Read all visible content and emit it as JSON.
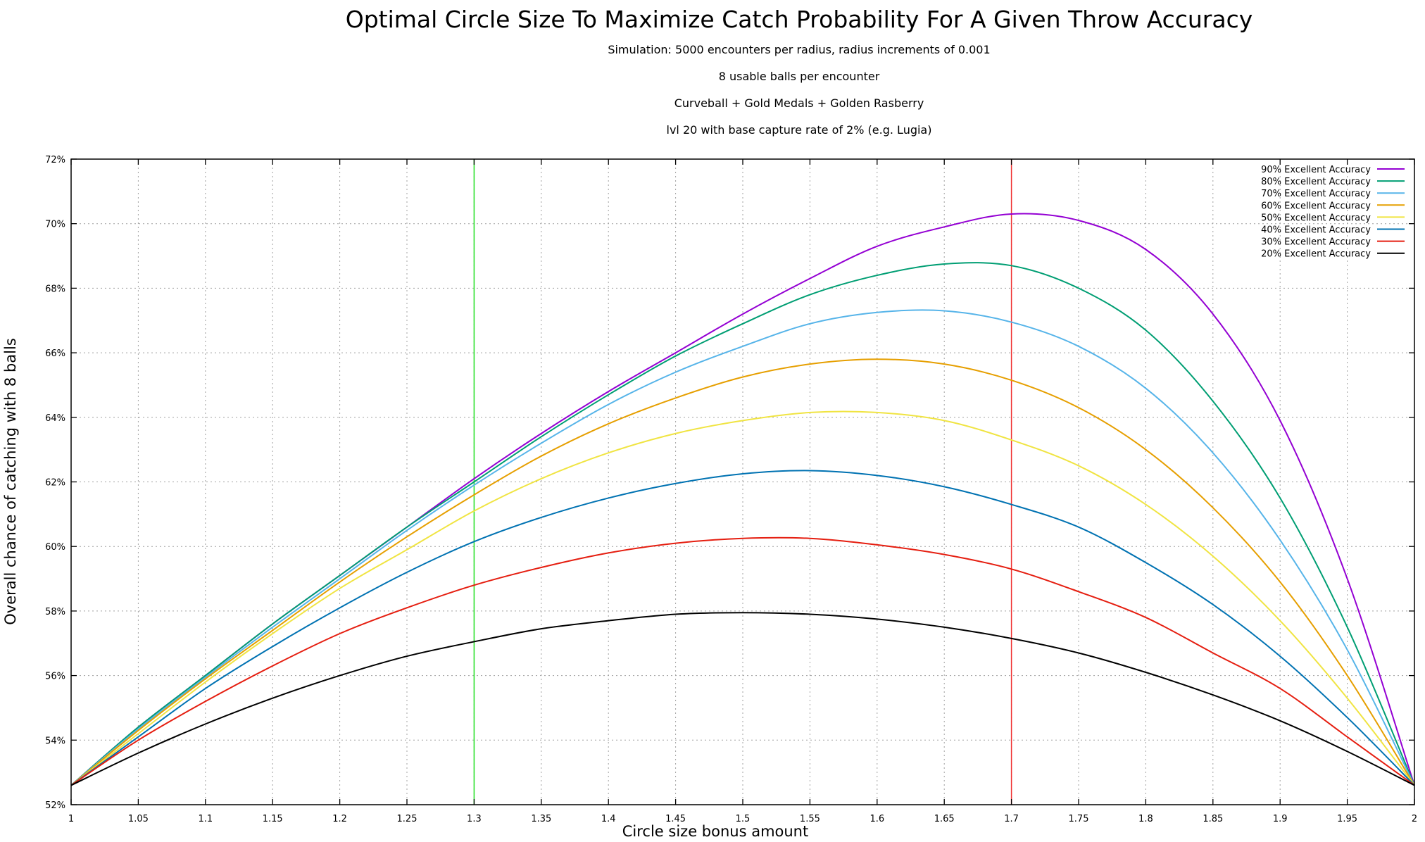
{
  "chart_data": {
    "type": "line",
    "title": "Optimal Circle Size To Maximize Catch Probability For A Given Throw Accuracy",
    "subtitles": [
      "Simulation: 5000 encounters per radius, radius increments of 0.001",
      "8 usable balls per encounter",
      "Curveball + Gold Medals + Golden Rasberry",
      "lvl 20 with base capture rate of 2% (e.g. Lugia)"
    ],
    "xlabel": "Circle size bonus amount",
    "ylabel": "Overall chance of catching with 8 balls",
    "xlim": [
      1,
      2
    ],
    "ylim": [
      52,
      72
    ],
    "grid": true,
    "legend_position": "top-right",
    "x_ticks": [
      "1",
      "1.05",
      "1.1",
      "1.15",
      "1.2",
      "1.25",
      "1.3",
      "1.35",
      "1.4",
      "1.45",
      "1.5",
      "1.55",
      "1.6",
      "1.65",
      "1.7",
      "1.75",
      "1.8",
      "1.85",
      "1.9",
      "1.95",
      "2"
    ],
    "y_ticks": [
      "52%",
      "54%",
      "56%",
      "58%",
      "60%",
      "62%",
      "64%",
      "66%",
      "68%",
      "70%",
      "72%"
    ],
    "vertical_lines": [
      {
        "x": 1.3,
        "color": "#22e022"
      },
      {
        "x": 1.7,
        "color": "#f03030"
      }
    ],
    "x": [
      1.0,
      1.05,
      1.1,
      1.15,
      1.2,
      1.25,
      1.3,
      1.35,
      1.4,
      1.45,
      1.5,
      1.55,
      1.6,
      1.65,
      1.7,
      1.75,
      1.8,
      1.85,
      1.9,
      1.95,
      2.0
    ],
    "series": [
      {
        "name": "90% Excellent Accuracy",
        "color": "#9400d3",
        "values": [
          52.6,
          54.4,
          56.0,
          57.6,
          59.1,
          60.6,
          62.1,
          63.5,
          64.8,
          66.0,
          67.2,
          68.3,
          69.3,
          69.9,
          70.3,
          70.1,
          69.2,
          67.2,
          63.9,
          59.0,
          52.6
        ]
      },
      {
        "name": "80% Excellent Accuracy",
        "color": "#009e73",
        "values": [
          52.6,
          54.4,
          56.0,
          57.6,
          59.1,
          60.6,
          62.0,
          63.4,
          64.7,
          65.9,
          66.9,
          67.8,
          68.4,
          68.75,
          68.7,
          68.0,
          66.7,
          64.5,
          61.5,
          57.5,
          52.6
        ]
      },
      {
        "name": "70% Excellent Accuracy",
        "color": "#56b4e9",
        "values": [
          52.6,
          54.35,
          55.95,
          57.5,
          59.0,
          60.5,
          61.9,
          63.2,
          64.4,
          65.4,
          66.2,
          66.9,
          67.25,
          67.3,
          66.95,
          66.2,
          64.9,
          62.9,
          60.2,
          56.8,
          52.6
        ]
      },
      {
        "name": "60% Excellent Accuracy",
        "color": "#e69f00",
        "values": [
          52.6,
          54.3,
          55.9,
          57.4,
          58.9,
          60.3,
          61.6,
          62.8,
          63.8,
          64.6,
          65.25,
          65.65,
          65.8,
          65.65,
          65.15,
          64.3,
          63.0,
          61.2,
          58.9,
          56.0,
          52.6
        ]
      },
      {
        "name": "50% Excellent Accuracy",
        "color": "#f0e442",
        "values": [
          52.6,
          54.2,
          55.8,
          57.3,
          58.7,
          59.9,
          61.1,
          62.1,
          62.9,
          63.5,
          63.9,
          64.15,
          64.15,
          63.9,
          63.3,
          62.5,
          61.3,
          59.7,
          57.7,
          55.3,
          52.6
        ]
      },
      {
        "name": "40% Excellent Accuracy",
        "color": "#0072b2",
        "values": [
          52.6,
          54.1,
          55.6,
          56.9,
          58.1,
          59.2,
          60.15,
          60.9,
          61.5,
          61.95,
          62.25,
          62.35,
          62.2,
          61.85,
          61.3,
          60.6,
          59.5,
          58.2,
          56.6,
          54.7,
          52.6
        ]
      },
      {
        "name": "30% Excellent Accuracy",
        "color": "#e51e10",
        "values": [
          52.6,
          54.0,
          55.2,
          56.3,
          57.3,
          58.1,
          58.8,
          59.35,
          59.8,
          60.1,
          60.25,
          60.25,
          60.05,
          59.75,
          59.3,
          58.6,
          57.8,
          56.7,
          55.6,
          54.1,
          52.6
        ]
      },
      {
        "name": "20% Excellent Accuracy",
        "color": "#000000",
        "values": [
          52.6,
          53.6,
          54.5,
          55.3,
          56.0,
          56.6,
          57.05,
          57.45,
          57.7,
          57.9,
          57.95,
          57.9,
          57.75,
          57.5,
          57.15,
          56.7,
          56.1,
          55.4,
          54.6,
          53.65,
          52.6
        ]
      }
    ]
  }
}
